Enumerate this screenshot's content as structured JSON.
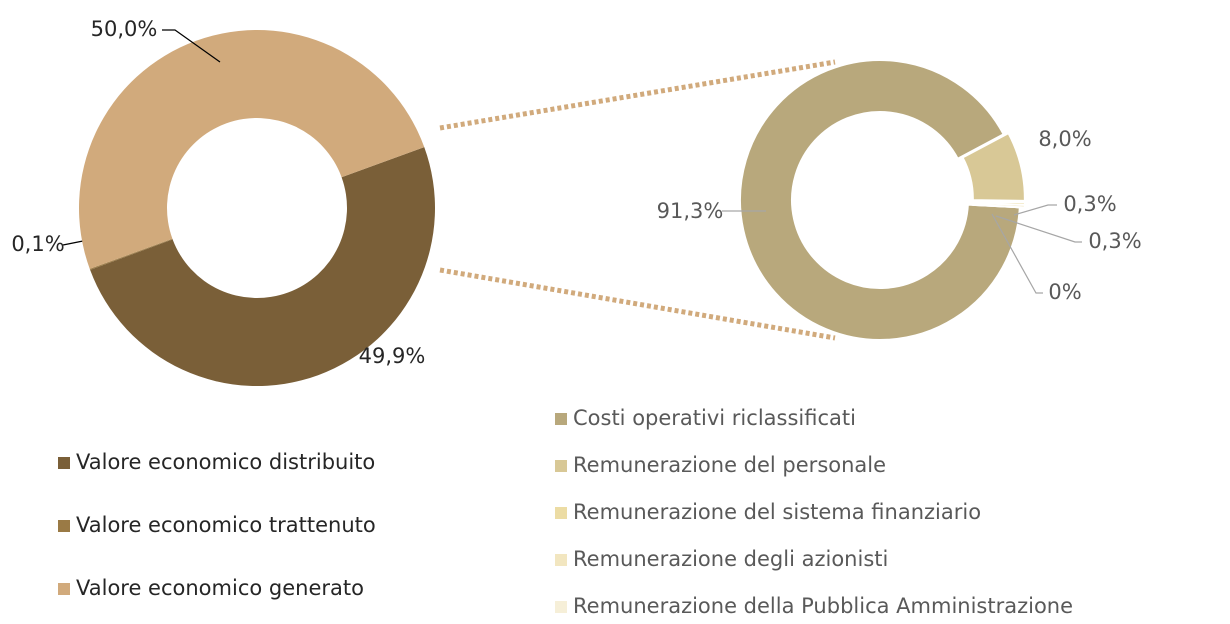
{
  "chart_data": [
    {
      "type": "donut",
      "categories": [
        "Valore economico distribuito",
        "Valore economico trattenuto",
        "Valore economico generato"
      ],
      "values": [
        49.9,
        0.1,
        50.0
      ],
      "value_labels": [
        "49,9%",
        "0,1%",
        "50,0%"
      ],
      "colors": [
        "#7a5f38",
        "#9a7a45",
        "#d1aa7c"
      ]
    },
    {
      "type": "donut",
      "categories": [
        "Costi operativi riclassificati",
        "Remunerazione del personale",
        "Remunerazione del sistema finanziario",
        "Remunerazione degli azionisti",
        "Remunerazione della Pubblica Amministrazione"
      ],
      "values": [
        91.3,
        8.0,
        0.3,
        0.3,
        0
      ],
      "value_labels": [
        "91,3%",
        "8,0%",
        "0,3%",
        "0,3%",
        "0%"
      ],
      "colors": [
        "#b8a87c",
        "#d8c896",
        "#ecdca4",
        "#f2e6c0",
        "#f6efd8"
      ]
    }
  ]
}
